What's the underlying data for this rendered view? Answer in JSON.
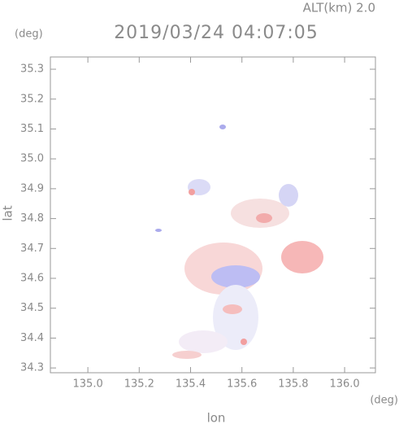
{
  "chart_data": {
    "type": "map",
    "title": "2019/03/24 04:07:05",
    "annotation": "ALT(km) 2.0",
    "y_unit": "(deg)",
    "x_unit": "(deg)",
    "xlabel": "lon",
    "ylabel": "lat",
    "xlim": [
      134.854,
      136.12
    ],
    "ylim": [
      34.284,
      35.341
    ],
    "xticks": [
      {
        "value": 135.0,
        "label": "135.0"
      },
      135.2,
      135.4,
      135.6,
      135.8,
      {
        "value": 136.0,
        "label": "136.0"
      }
    ],
    "yticks": [
      34.3,
      34.4,
      34.5,
      34.6,
      34.7,
      34.8,
      34.9,
      {
        "value": 35.0,
        "label": "35.0"
      },
      35.1,
      35.2,
      35.3
    ]
  }
}
